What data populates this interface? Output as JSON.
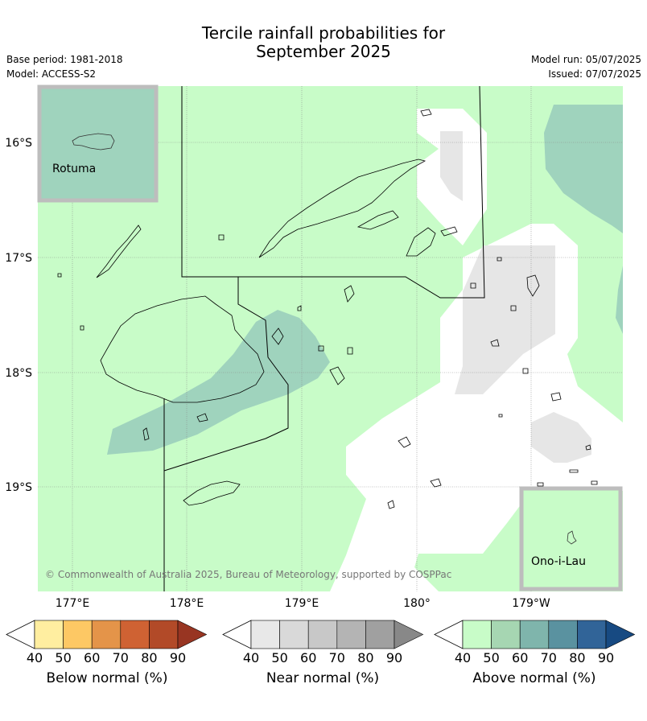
{
  "title_line1": "Tercile rainfall probabilities for",
  "title_line2": "September 2025",
  "base_period": "Base period: 1981-2018",
  "model": "Model: ACCESS-S2",
  "model_run": "Model run: 05/07/2025",
  "issued": "Issued: 07/07/2025",
  "inset_top": "Rotuma",
  "inset_bottom": "Ono-i-Lau",
  "copyright": "© Commonwealth of Australia 2025, Bureau of Meteorology, supported by COSPPac",
  "lat_labels": [
    "16°S",
    "17°S",
    "18°S",
    "19°S"
  ],
  "lon_labels": [
    "177°E",
    "178°E",
    "179°E",
    "180°",
    "179°W"
  ],
  "colorbars": [
    {
      "label": "Below normal (%)",
      "ticks": [
        "40",
        "50",
        "60",
        "70",
        "80",
        "90"
      ],
      "colors": [
        "#ffeea0",
        "#fdc864",
        "#e49449",
        "#cf6233",
        "#b24a28",
        "#983522"
      ]
    },
    {
      "label": "Near normal (%)",
      "ticks": [
        "40",
        "50",
        "60",
        "70",
        "80",
        "90"
      ],
      "colors": [
        "#e8e8e8",
        "#d9d9d9",
        "#c8c8c8",
        "#b4b4b4",
        "#a0a0a0",
        "#888888"
      ]
    },
    {
      "label": "Above normal (%)",
      "ticks": [
        "40",
        "50",
        "60",
        "70",
        "80",
        "90"
      ],
      "colors": [
        "#c8fcc8",
        "#a6d6b2",
        "#7fb5ac",
        "#5a92a0",
        "#316498",
        "#174a82"
      ]
    }
  ],
  "colors": {
    "above40": "#c8fcc8",
    "above50": "#9fd3bd",
    "near40": "#e6e6e6",
    "frame": "#bdbdbd"
  }
}
